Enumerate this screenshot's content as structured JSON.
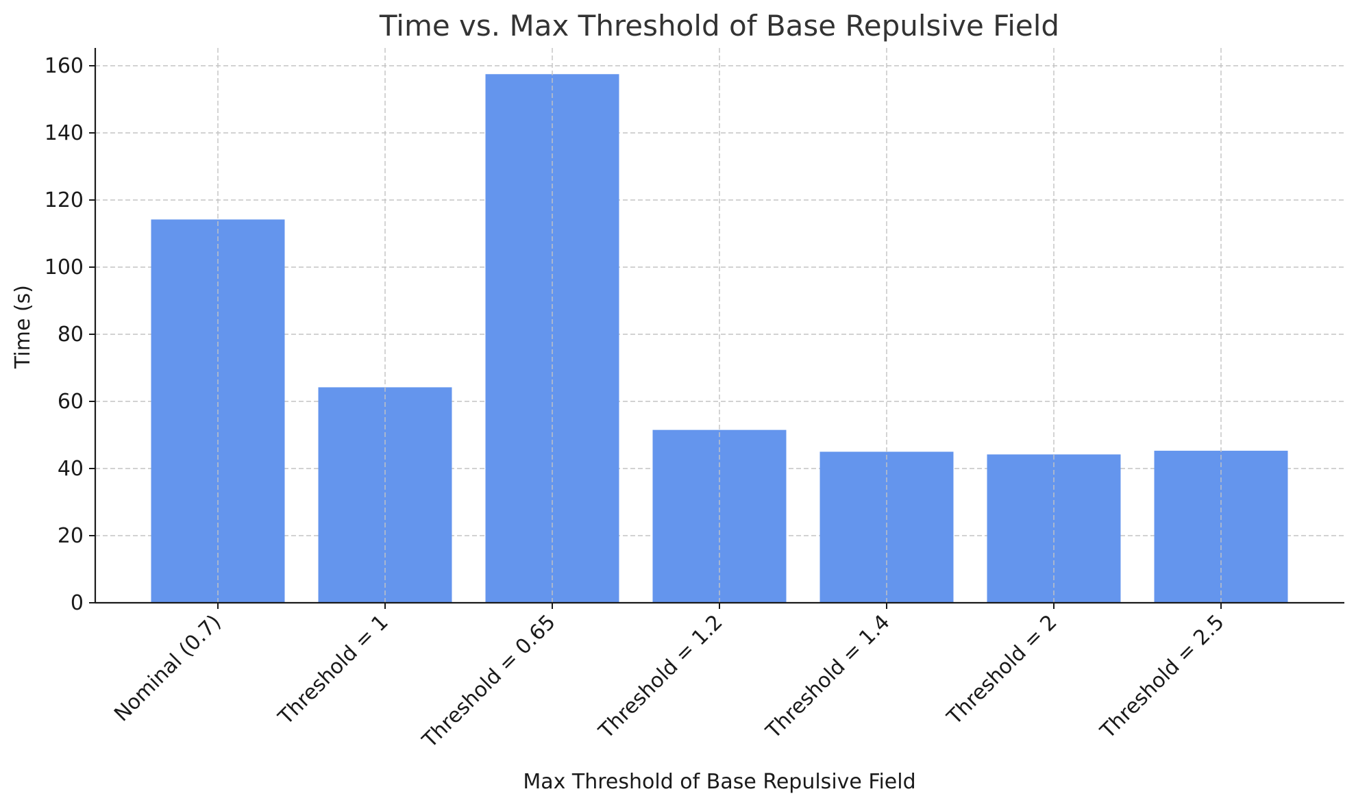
{
  "chart_data": {
    "type": "bar",
    "title": "Time vs. Max Threshold of Base Repulsive Field",
    "xlabel": "Max Threshold of Base Repulsive Field",
    "ylabel": "Time (s)",
    "categories": [
      "Nominal (0.7)",
      "Threshold = 1",
      "Threshold = 0.65",
      "Threshold = 1.2",
      "Threshold = 1.4",
      "Threshold = 2",
      "Threshold = 2.5"
    ],
    "values": [
      114.2,
      64.2,
      157.5,
      51.5,
      45.0,
      44.2,
      45.3
    ],
    "ylim": [
      0,
      165
    ],
    "yticks": [
      0,
      20,
      40,
      60,
      80,
      100,
      120,
      140,
      160
    ],
    "grid": true,
    "bar_color": "#6495ED"
  }
}
